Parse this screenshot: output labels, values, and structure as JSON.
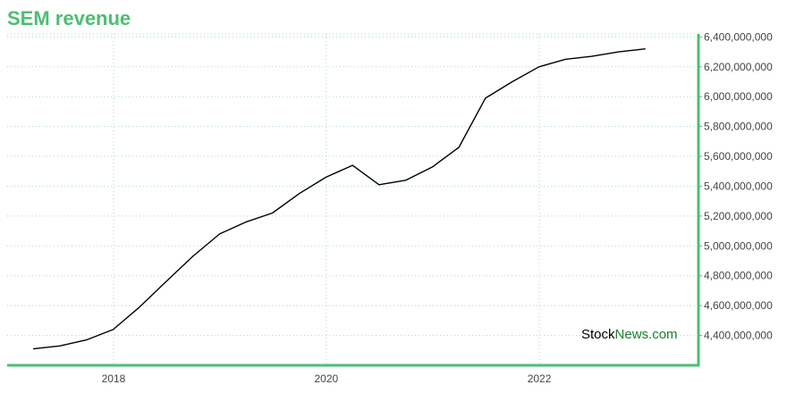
{
  "chart_data": {
    "type": "line",
    "title": "SEM revenue",
    "xlabel": "",
    "ylabel": "",
    "x_ticks": [
      "2018",
      "2020",
      "2022"
    ],
    "y_ticks": [
      "4,400,000,000",
      "4,600,000,000",
      "4,800,000,000",
      "5,000,000,000",
      "5,200,000,000",
      "5,400,000,000",
      "5,600,000,000",
      "5,800,000,000",
      "6,000,000,000",
      "6,200,000,000",
      "6,400,000,000"
    ],
    "ylim": [
      4200000000,
      6420000000
    ],
    "xlim": [
      "2017-01-01",
      "2023-07-01"
    ],
    "grid": true,
    "colors": {
      "accent": "#4dbd74",
      "line": "#000000",
      "grid": "#a8d8d0"
    },
    "x": [
      "2017-03-31",
      "2017-06-30",
      "2017-09-30",
      "2017-12-31",
      "2018-03-31",
      "2018-06-30",
      "2018-09-30",
      "2018-12-31",
      "2019-03-31",
      "2019-06-30",
      "2019-09-30",
      "2019-12-31",
      "2020-03-31",
      "2020-06-30",
      "2020-09-30",
      "2020-12-31",
      "2021-03-31",
      "2021-06-30",
      "2021-09-30",
      "2021-12-31",
      "2022-03-31",
      "2022-06-30",
      "2022-09-30",
      "2022-12-31"
    ],
    "values": [
      4310000000,
      4330000000,
      4370000000,
      4440000000,
      4590000000,
      4760000000,
      4930000000,
      5080000000,
      5160000000,
      5220000000,
      5350000000,
      5460000000,
      5540000000,
      5410000000,
      5440000000,
      5530000000,
      5660000000,
      5990000000,
      6100000000,
      6200000000,
      6250000000,
      6270000000,
      6300000000,
      6320000000
    ]
  },
  "watermark": {
    "part1": "Stock",
    "part2": "News",
    "part3": ".com"
  }
}
